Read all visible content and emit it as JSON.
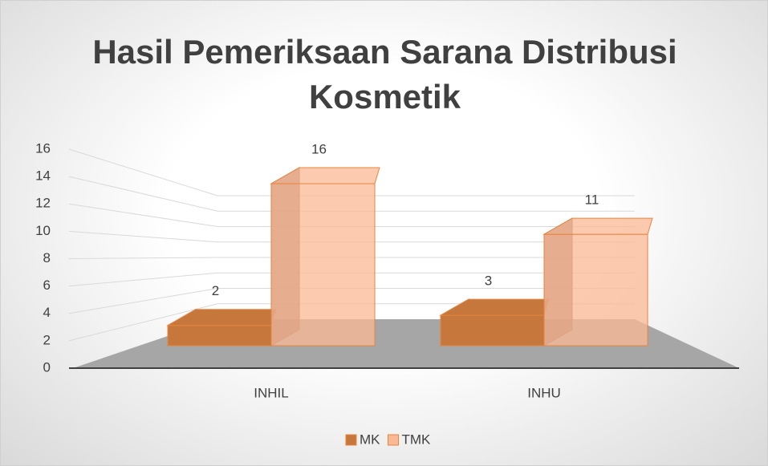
{
  "chart_data": {
    "type": "bar3d",
    "title": "Hasil Pemeriksaan Sarana Distribusi Kosmetik",
    "categories": [
      "INHIL",
      "INHU"
    ],
    "series": [
      {
        "name": "MK",
        "color": "#c5773c",
        "values": [
          2,
          3
        ]
      },
      {
        "name": "TMK",
        "color": "#fbb894",
        "values": [
          16,
          11
        ]
      }
    ],
    "ylim": [
      0,
      16
    ],
    "yticks": [
      0,
      2,
      4,
      6,
      8,
      10,
      12,
      14,
      16
    ],
    "grid": true,
    "legend": "bottom"
  }
}
